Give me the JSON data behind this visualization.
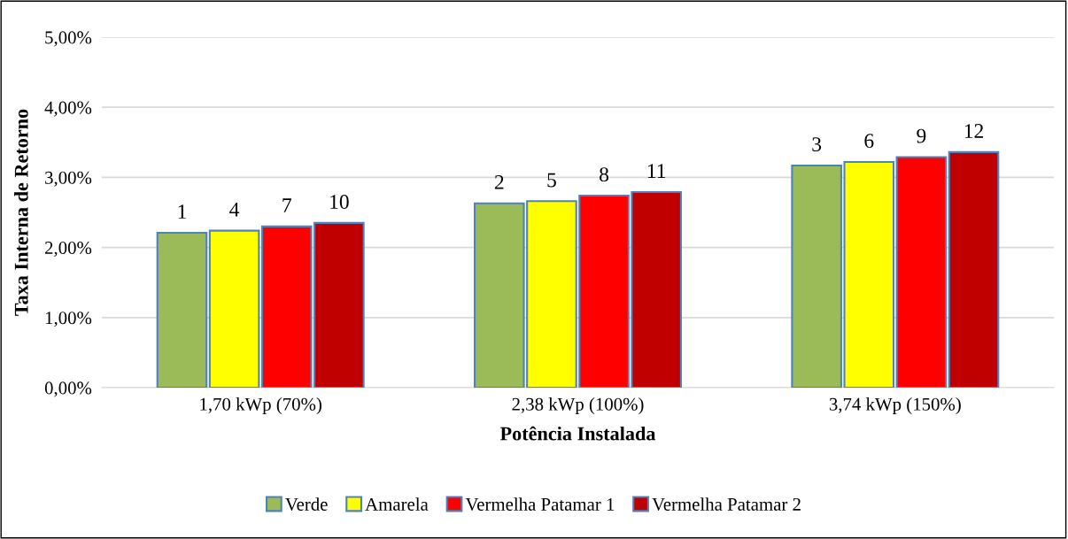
{
  "chart_data": {
    "type": "bar",
    "xlabel": "Potência Instalada",
    "ylabel": "Taxa Interna de Retorno",
    "categories": [
      "1,70 kWp (70%)",
      "2,38 kWp (100%)",
      "3,74 kWp (150%)"
    ],
    "series": [
      {
        "name": "Verde",
        "color": "#9bbb59",
        "values": [
          2.21,
          2.63,
          3.17
        ]
      },
      {
        "name": "Amarela",
        "color": "#ffff00",
        "values": [
          2.24,
          2.66,
          3.22
        ]
      },
      {
        "name": "Vermelha Patamar 1",
        "color": "#ff0000",
        "values": [
          2.3,
          2.74,
          3.29
        ]
      },
      {
        "name": "Vermelha Patamar 2",
        "color": "#c00000",
        "values": [
          2.35,
          2.79,
          3.36
        ]
      }
    ],
    "annotations": [
      "1",
      "2",
      "3",
      "4",
      "5",
      "6",
      "7",
      "8",
      "9",
      "10",
      "11",
      "12"
    ],
    "ylim": [
      0,
      5
    ],
    "yticks": [
      {
        "value": 0,
        "label": "0,00%"
      },
      {
        "value": 1,
        "label": "1,00%"
      },
      {
        "value": 2,
        "label": "2,00%"
      },
      {
        "value": 3,
        "label": "3,00%"
      },
      {
        "value": 4,
        "label": "4,00%"
      },
      {
        "value": 5,
        "label": "5,00%"
      }
    ],
    "grid": "y",
    "legend": "bottom"
  }
}
